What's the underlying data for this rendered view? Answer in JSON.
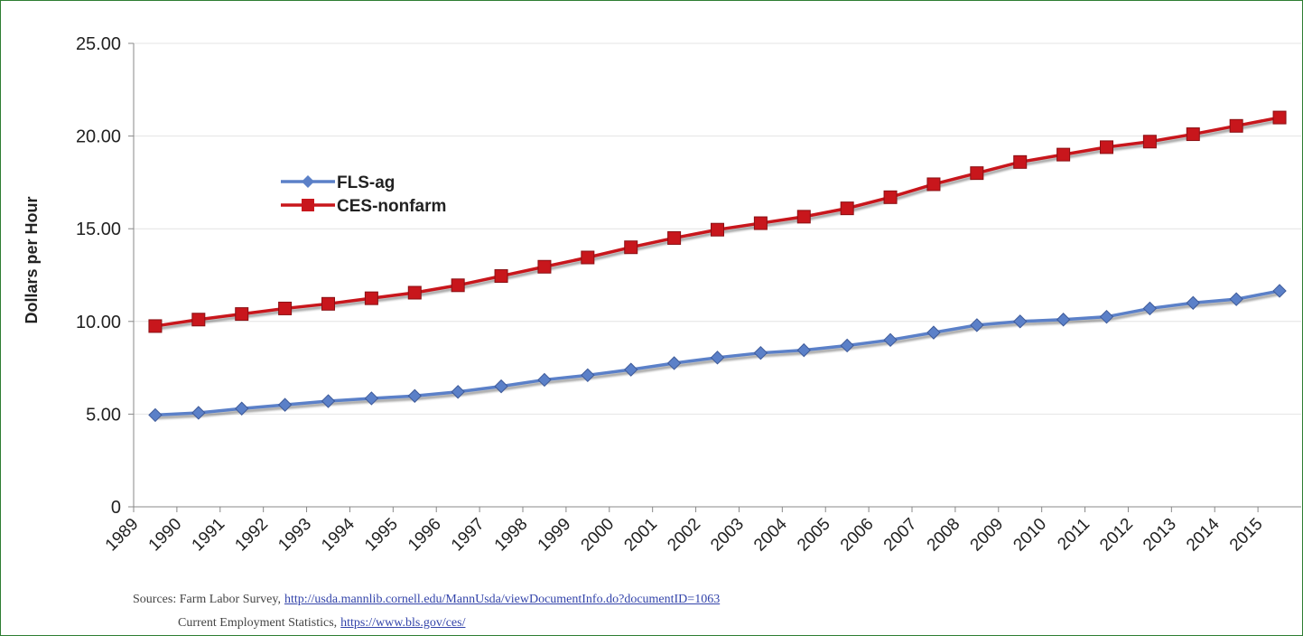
{
  "chart_data": {
    "type": "line",
    "y_label": "Dollars per Hour",
    "categories": [
      "1989",
      "1990",
      "1991",
      "1992",
      "1993",
      "1994",
      "1995",
      "1996",
      "1997",
      "1998",
      "1999",
      "2000",
      "2001",
      "2002",
      "2003",
      "2004",
      "2005",
      "2006",
      "2007",
      "2008",
      "2009",
      "2010",
      "2011",
      "2012",
      "2013",
      "2014",
      "2015"
    ],
    "series": [
      {
        "name": "FLS-ag",
        "color": "#5b80c8",
        "marker": "diamond",
        "values": [
          4.95,
          5.07,
          5.3,
          5.5,
          5.7,
          5.85,
          5.98,
          6.2,
          6.5,
          6.85,
          7.1,
          7.4,
          7.75,
          8.05,
          8.3,
          8.45,
          8.7,
          9.0,
          9.4,
          9.8,
          10.0,
          10.1,
          10.25,
          10.7,
          11.0,
          11.2,
          11.65
        ]
      },
      {
        "name": "CES-nonfarm",
        "color": "#c8161c",
        "marker": "square",
        "values": [
          9.75,
          10.1,
          10.4,
          10.7,
          10.95,
          11.25,
          11.55,
          11.95,
          12.45,
          12.95,
          13.45,
          14.0,
          14.5,
          14.95,
          15.3,
          15.65,
          16.1,
          16.7,
          17.4,
          18.0,
          18.6,
          19.0,
          19.4,
          19.7,
          20.1,
          20.55,
          21.0
        ]
      }
    ],
    "ylim": [
      0,
      25
    ],
    "yticks": [
      0,
      {
        "value": 5,
        "label": "5.00"
      },
      {
        "value": 10,
        "label": "10.00"
      },
      {
        "value": 15,
        "label": "15.00"
      },
      {
        "value": 20,
        "label": "20.00"
      },
      {
        "value": 25,
        "label": "25.00"
      }
    ],
    "grid": true,
    "legend": "upper left",
    "sources": [
      {
        "text": "Sources: Farm Labor Survey,",
        "link": "http://usda.mannlib.cornell.edu/MannUsda/viewDocumentInfo.do?documentID=1063"
      },
      {
        "text": "Current Employment Statistics,",
        "link": "https://www.bls.gov/ces/"
      }
    ]
  }
}
